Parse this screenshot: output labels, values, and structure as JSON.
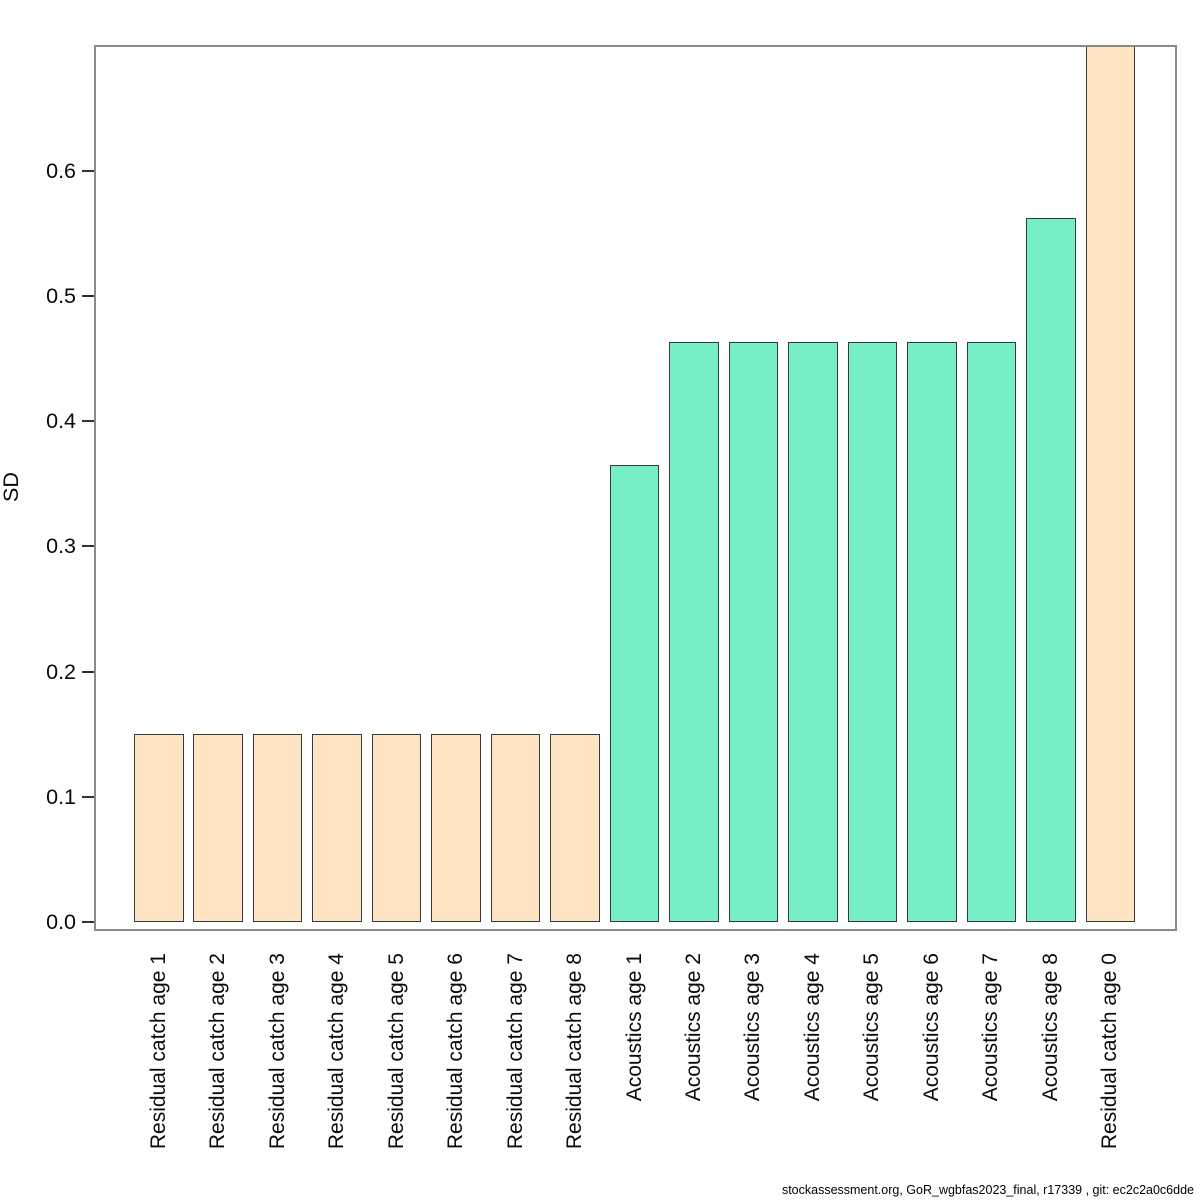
{
  "footer": {
    "text": "stockassessment.org, GoR_wgbfas2023_final, r17339 , git: ec2c2a0c6dde"
  },
  "chart_data": {
    "type": "bar",
    "title": "",
    "xlabel": "",
    "ylabel": "SD",
    "categories": [
      "Residual catch age 1",
      "Residual catch age 2",
      "Residual catch age 3",
      "Residual catch age 4",
      "Residual catch age 5",
      "Residual catch age 6",
      "Residual catch age 7",
      "Residual catch age 8",
      "Acoustics age 1",
      "Acoustics age 2",
      "Acoustics age 3",
      "Acoustics age 4",
      "Acoustics age 5",
      "Acoustics age 6",
      "Acoustics age 7",
      "Acoustics age 8",
      "Residual catch age 0"
    ],
    "values": [
      0.15,
      0.15,
      0.15,
      0.15,
      0.15,
      0.15,
      0.15,
      0.15,
      0.365,
      0.463,
      0.463,
      0.463,
      0.463,
      0.463,
      0.463,
      0.562,
      0.7
    ],
    "groups": [
      "residual",
      "residual",
      "residual",
      "residual",
      "residual",
      "residual",
      "residual",
      "residual",
      "acoustics",
      "acoustics",
      "acoustics",
      "acoustics",
      "acoustics",
      "acoustics",
      "acoustics",
      "acoustics",
      "residual"
    ],
    "colors": {
      "residual": "#FFE4C4",
      "acoustics": "#76EEC6",
      "bar_border": "#3a3a3a",
      "frame": "#8a8a8a",
      "text": "#0a0a0a"
    },
    "ylim": [
      0,
      0.7
    ],
    "yticks": [
      0.0,
      0.1,
      0.2,
      0.3,
      0.4,
      0.5,
      0.6
    ],
    "ytick_labels": [
      "0.0",
      "0.1",
      "0.2",
      "0.3",
      "0.4",
      "0.5",
      "0.6"
    ],
    "grid": false,
    "legend": "none",
    "note": "Last bar (Residual catch age 0) is clipped at the top of the plot frame"
  }
}
